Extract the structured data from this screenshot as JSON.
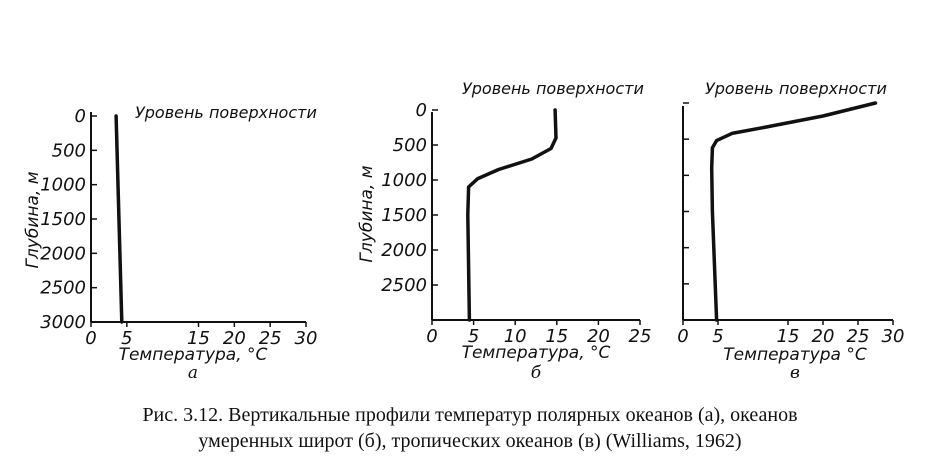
{
  "chart_data": [
    {
      "type": "line",
      "panel_label": "а",
      "xlabel": "Температура, °С",
      "ylabel": "Глубина, м",
      "annotation": "Уровень поверхности",
      "x_ticks": [
        "0",
        "5",
        "15",
        "20",
        "25",
        "30"
      ],
      "x_tick_values": [
        0,
        5,
        15,
        20,
        25,
        30
      ],
      "y_ticks": [
        "0",
        "500",
        "1000",
        "1500",
        "2000",
        "2500",
        "3000"
      ],
      "y_tick_values": [
        0,
        500,
        1000,
        1500,
        2000,
        2500,
        3000
      ],
      "xlim": [
        0,
        30
      ],
      "ylim": [
        0,
        3000
      ],
      "series": [
        {
          "x": [
            3.5,
            4.3
          ],
          "y": [
            0,
            3000
          ]
        }
      ]
    },
    {
      "type": "line",
      "panel_label": "б",
      "xlabel": "Температура, °С",
      "ylabel": "Глубина, м",
      "annotation": "Уровень поверхности",
      "x_ticks": [
        "0",
        "5",
        "10",
        "15",
        "20",
        "25"
      ],
      "x_tick_values": [
        0,
        5,
        10,
        15,
        20,
        25
      ],
      "y_ticks": [
        "0",
        "500",
        "1000",
        "1500",
        "2000",
        "2500"
      ],
      "y_tick_values": [
        0,
        500,
        1000,
        1500,
        2000,
        2500
      ],
      "xlim": [
        0,
        25
      ],
      "ylim": [
        0,
        3000
      ],
      "series": [
        {
          "x": [
            14.8,
            14.9,
            14.3,
            12.0,
            8.0,
            5.5,
            4.4,
            4.3,
            4.5
          ],
          "y": [
            0,
            400,
            550,
            700,
            850,
            980,
            1100,
            1500,
            3000
          ]
        }
      ]
    },
    {
      "type": "line",
      "panel_label": "в",
      "xlabel": "Температура °С",
      "annotation": "Уровень поверхности",
      "x_ticks": [
        "0",
        "5",
        "15",
        "20",
        "25",
        "30"
      ],
      "x_tick_values": [
        0,
        5,
        15,
        20,
        25,
        30
      ],
      "xlim": [
        0,
        30
      ],
      "ylim": [
        0,
        3000
      ],
      "series": [
        {
          "x": [
            27.5,
            20.0,
            12.0,
            7.0,
            4.8,
            4.2,
            4.1,
            4.2,
            4.8
          ],
          "y": [
            0,
            180,
            330,
            420,
            520,
            620,
            900,
            1500,
            3000
          ]
        }
      ]
    }
  ],
  "caption": {
    "line1": "Рис. 3.12. Вертикальные профили температур полярных  океанов (а), океанов",
    "line2": "умеренных широт (б), тропических океанов (в)  (Williams, 1962)"
  }
}
